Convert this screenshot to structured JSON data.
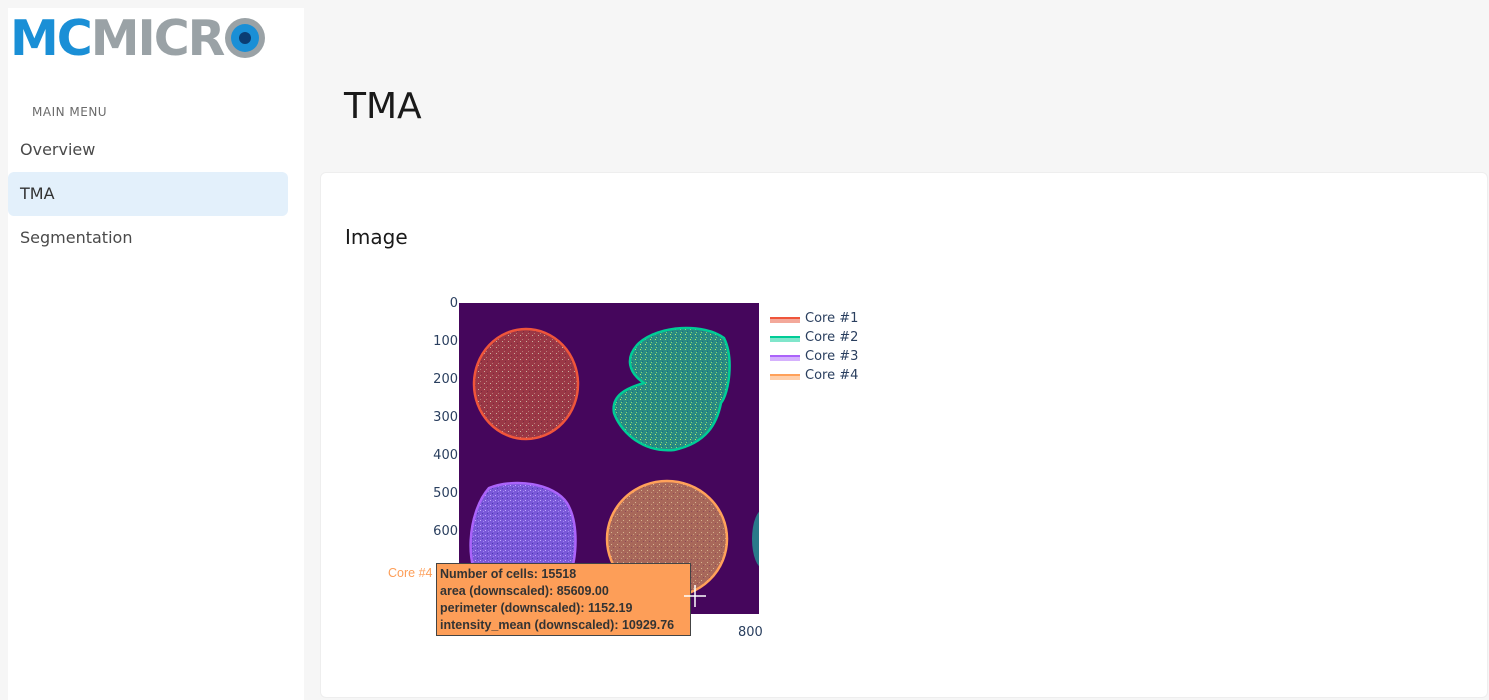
{
  "sidebar": {
    "logo_text_a": "MC",
    "logo_text_b": "MICR",
    "menu_heading": "MAIN MENU",
    "items": [
      {
        "label": "Overview",
        "active": false
      },
      {
        "label": "TMA",
        "active": true
      },
      {
        "label": "Segmentation",
        "active": false
      }
    ]
  },
  "main": {
    "page_title": "TMA",
    "card_title": "Image",
    "plot": {
      "y_ticks": [
        "0",
        "100",
        "200",
        "300",
        "400",
        "500",
        "600"
      ],
      "x_ticks_visible": [
        "800"
      ],
      "legend": [
        {
          "label": "Core #1",
          "color": "#ef553b"
        },
        {
          "label": "Core #2",
          "color": "#00cc96"
        },
        {
          "label": "Core #3",
          "color": "#ab63fa"
        },
        {
          "label": "Core #4",
          "color": "#ffa15a"
        }
      ],
      "tooltip": {
        "name": "Core #4",
        "lines": [
          "Number of cells: 15518",
          "area (downscaled): 85609.00",
          "perimeter (downscaled): 1152.19",
          "intensity_mean (downscaled): 10929.76"
        ]
      }
    }
  },
  "colors": {
    "accent": "#1a8fd6",
    "active_bg": "#e3f0fb",
    "image_bg": "#45065c",
    "tooltip_bg": "#fd9e58"
  }
}
